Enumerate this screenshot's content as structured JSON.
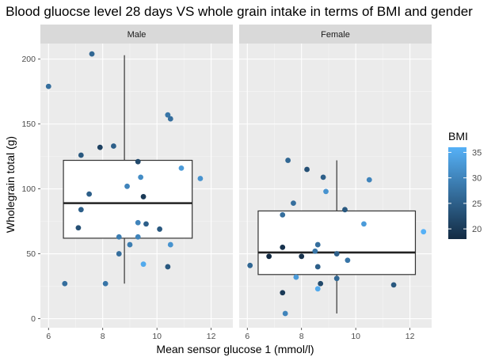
{
  "chart_data": {
    "type": "scatter",
    "overlay": "boxplot",
    "title": "Blood gluocse level 28 days VS whole grain intake in terms of BMI and gender",
    "xlabel": "Mean sensor glucose 1 (mmol/l)",
    "ylabel": "Wholegrain total (g)",
    "xlim": [
      5.7,
      12.8
    ],
    "ylim": [
      -7,
      212
    ],
    "x_ticks": [
      6,
      8,
      10,
      12
    ],
    "y_ticks": [
      0,
      50,
      100,
      150,
      200
    ],
    "grid": true,
    "legend": {
      "title": "BMI",
      "type": "colorbar",
      "placement": "right",
      "range": [
        18,
        36
      ],
      "ticks": [
        20,
        25,
        30,
        35
      ],
      "color_low": "#132B43",
      "color_high": "#56B1F7"
    },
    "panels": [
      {
        "name": "Male",
        "box": {
          "x_min": 6.55,
          "x_max": 11.3,
          "whisker_x": 8.8,
          "whisker_low": 27,
          "q1": 62,
          "median": 89,
          "q3": 122,
          "whisker_high": 203
        },
        "points": [
          {
            "x": 6.0,
            "y": 179,
            "bmi": 27
          },
          {
            "x": 7.6,
            "y": 204,
            "bmi": 26
          },
          {
            "x": 10.4,
            "y": 157,
            "bmi": 28
          },
          {
            "x": 10.5,
            "y": 154,
            "bmi": 27
          },
          {
            "x": 7.9,
            "y": 132,
            "bmi": 21
          },
          {
            "x": 8.4,
            "y": 133,
            "bmi": 25
          },
          {
            "x": 7.2,
            "y": 126,
            "bmi": 24
          },
          {
            "x": 9.3,
            "y": 121,
            "bmi": 22
          },
          {
            "x": 10.9,
            "y": 116,
            "bmi": 33
          },
          {
            "x": 9.4,
            "y": 109,
            "bmi": 31
          },
          {
            "x": 11.6,
            "y": 108,
            "bmi": 32
          },
          {
            "x": 8.9,
            "y": 102,
            "bmi": 30
          },
          {
            "x": 7.5,
            "y": 96,
            "bmi": 25
          },
          {
            "x": 9.5,
            "y": 94,
            "bmi": 20
          },
          {
            "x": 7.2,
            "y": 84,
            "bmi": 25
          },
          {
            "x": 9.3,
            "y": 74,
            "bmi": 30
          },
          {
            "x": 9.6,
            "y": 73,
            "bmi": 25
          },
          {
            "x": 7.1,
            "y": 70,
            "bmi": 23
          },
          {
            "x": 10.1,
            "y": 69,
            "bmi": 24
          },
          {
            "x": 8.6,
            "y": 63,
            "bmi": 29
          },
          {
            "x": 9.3,
            "y": 63,
            "bmi": 30
          },
          {
            "x": 9.0,
            "y": 57,
            "bmi": 29
          },
          {
            "x": 10.5,
            "y": 57,
            "bmi": 32
          },
          {
            "x": 8.6,
            "y": 50,
            "bmi": 27
          },
          {
            "x": 9.5,
            "y": 42,
            "bmi": 35
          },
          {
            "x": 10.4,
            "y": 40,
            "bmi": 24
          },
          {
            "x": 6.6,
            "y": 27,
            "bmi": 27
          },
          {
            "x": 8.1,
            "y": 27,
            "bmi": 28
          }
        ]
      },
      {
        "name": "Female",
        "box": {
          "x_min": 6.4,
          "x_max": 12.2,
          "whisker_x": 9.3,
          "whisker_low": 4,
          "q1": 34,
          "median": 51,
          "q3": 83,
          "whisker_high": 122
        },
        "points": [
          {
            "x": 7.5,
            "y": 122,
            "bmi": 26
          },
          {
            "x": 8.2,
            "y": 115,
            "bmi": 23
          },
          {
            "x": 8.8,
            "y": 109,
            "bmi": 25
          },
          {
            "x": 10.5,
            "y": 107,
            "bmi": 30
          },
          {
            "x": 8.9,
            "y": 98,
            "bmi": 32
          },
          {
            "x": 7.7,
            "y": 89,
            "bmi": 27
          },
          {
            "x": 9.6,
            "y": 84,
            "bmi": 24
          },
          {
            "x": 7.3,
            "y": 80,
            "bmi": 27
          },
          {
            "x": 10.3,
            "y": 73,
            "bmi": 33
          },
          {
            "x": 12.5,
            "y": 67,
            "bmi": 36
          },
          {
            "x": 7.3,
            "y": 55,
            "bmi": 19
          },
          {
            "x": 8.6,
            "y": 57,
            "bmi": 27
          },
          {
            "x": 8.5,
            "y": 52,
            "bmi": 28
          },
          {
            "x": 6.8,
            "y": 48,
            "bmi": 18
          },
          {
            "x": 8.0,
            "y": 48,
            "bmi": 19
          },
          {
            "x": 9.3,
            "y": 50,
            "bmi": 25
          },
          {
            "x": 9.7,
            "y": 45,
            "bmi": 28
          },
          {
            "x": 6.1,
            "y": 41,
            "bmi": 26
          },
          {
            "x": 8.6,
            "y": 40,
            "bmi": 25
          },
          {
            "x": 7.8,
            "y": 32,
            "bmi": 33
          },
          {
            "x": 9.3,
            "y": 31,
            "bmi": 26
          },
          {
            "x": 8.7,
            "y": 27,
            "bmi": 22
          },
          {
            "x": 11.4,
            "y": 26,
            "bmi": 24
          },
          {
            "x": 8.6,
            "y": 23,
            "bmi": 35
          },
          {
            "x": 7.3,
            "y": 20,
            "bmi": 20
          },
          {
            "x": 7.4,
            "y": 4,
            "bmi": 30
          }
        ]
      }
    ]
  }
}
